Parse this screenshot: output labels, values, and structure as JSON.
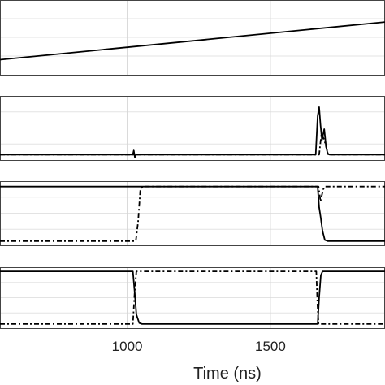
{
  "chart_data": [
    {
      "type": "line",
      "panel": 1,
      "xlim": [
        556,
        1900
      ],
      "ylim": [
        0,
        1
      ],
      "grid": true,
      "series": [
        {
          "style": "solid",
          "color": "#000000",
          "points": [
            [
              556,
              0.18
            ],
            [
              1900,
              0.72
            ]
          ]
        }
      ]
    },
    {
      "type": "line",
      "panel": 2,
      "xlim": [
        556,
        1900
      ],
      "ylim": [
        0,
        1
      ],
      "grid": true,
      "series": [
        {
          "style": "solid",
          "color": "#000000",
          "points": [
            [
              556,
              0.05
            ],
            [
              1020,
              0.05
            ],
            [
              1023,
              0.12
            ],
            [
              1027,
              0.0
            ],
            [
              1031,
              0.05
            ],
            [
              1658,
              0.05
            ],
            [
              1665,
              0.7
            ],
            [
              1670,
              0.85
            ],
            [
              1675,
              0.55
            ],
            [
              1680,
              0.3
            ],
            [
              1688,
              0.48
            ],
            [
              1694,
              0.2
            ],
            [
              1700,
              0.06
            ],
            [
              1706,
              0.05
            ],
            [
              1900,
              0.05
            ]
          ]
        },
        {
          "style": "dashdot",
          "color": "#000000",
          "points": [
            [
              556,
              0.05
            ],
            [
              1670,
              0.05
            ],
            [
              1678,
              0.4
            ],
            [
              1688,
              0.3
            ],
            [
              1696,
              0.15
            ],
            [
              1702,
              0.05
            ],
            [
              1900,
              0.05
            ]
          ]
        }
      ]
    },
    {
      "type": "line",
      "panel": 3,
      "xlim": [
        556,
        1900
      ],
      "ylim": [
        0,
        1
      ],
      "grid": true,
      "series": [
        {
          "style": "solid",
          "color": "#000000",
          "points": [
            [
              556,
              0.95
            ],
            [
              1665,
              0.95
            ],
            [
              1670,
              0.6
            ],
            [
              1675,
              0.45
            ],
            [
              1682,
              0.2
            ],
            [
              1690,
              0.05
            ],
            [
              1700,
              0.03
            ],
            [
              1900,
              0.03
            ]
          ]
        },
        {
          "style": "dashdot",
          "color": "#000000",
          "points": [
            [
              556,
              0.03
            ],
            [
              1030,
              0.03
            ],
            [
              1038,
              0.35
            ],
            [
              1046,
              0.9
            ],
            [
              1055,
              0.95
            ],
            [
              1668,
              0.95
            ],
            [
              1675,
              0.7
            ],
            [
              1684,
              0.9
            ],
            [
              1692,
              0.95
            ],
            [
              1900,
              0.95
            ]
          ]
        }
      ]
    },
    {
      "type": "line",
      "panel": 4,
      "xlim": [
        556,
        1900
      ],
      "ylim": [
        0,
        1
      ],
      "grid": true,
      "series": [
        {
          "style": "solid",
          "color": "#000000",
          "points": [
            [
              556,
              0.97
            ],
            [
              1020,
              0.97
            ],
            [
              1026,
              0.6
            ],
            [
              1032,
              0.2
            ],
            [
              1042,
              0.05
            ],
            [
              1052,
              0.03
            ],
            [
              1665,
              0.03
            ],
            [
              1670,
              0.5
            ],
            [
              1676,
              0.9
            ],
            [
              1682,
              0.97
            ],
            [
              1900,
              0.97
            ]
          ]
        },
        {
          "style": "dashdot",
          "color": "#000000",
          "points": [
            [
              556,
              0.03
            ],
            [
              1020,
              0.03
            ],
            [
              1026,
              0.6
            ],
            [
              1032,
              0.97
            ],
            [
              1660,
              0.97
            ],
            [
              1664,
              0.4
            ],
            [
              1668,
              0.03
            ],
            [
              1900,
              0.03
            ]
          ]
        }
      ]
    }
  ],
  "x_axis": {
    "tick_values": [
      1000,
      1500
    ],
    "tick_labels": [
      "1000",
      "1500"
    ],
    "label": "Time (ns)"
  }
}
